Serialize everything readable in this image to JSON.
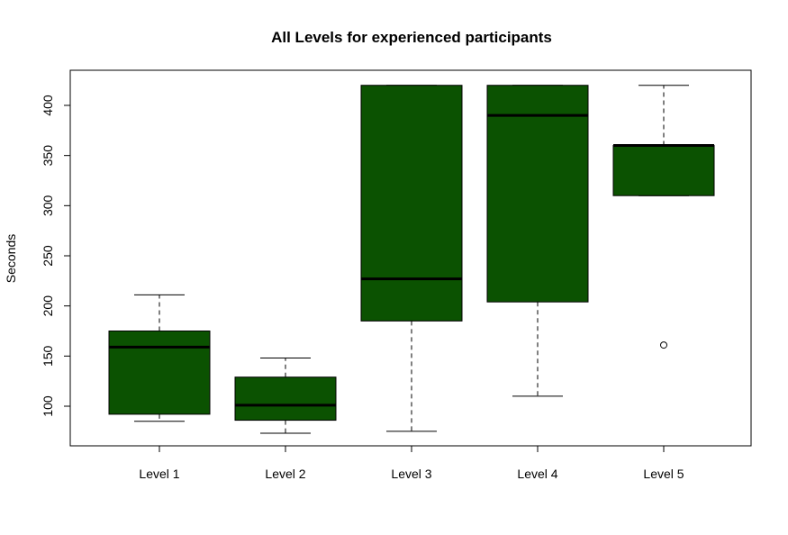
{
  "chart_data": {
    "type": "boxplot",
    "title": "All Levels for experienced participants",
    "xlabel": "",
    "ylabel": "Seconds",
    "categories": [
      "Level 1",
      "Level 2",
      "Level 3",
      "Level 4",
      "Level 5"
    ],
    "yticks": [
      100,
      150,
      200,
      250,
      300,
      350,
      400
    ],
    "ylim": [
      60,
      435
    ],
    "box_color": "#0b5201",
    "boxes": [
      {
        "category": "Level 1",
        "whisker_low": 85,
        "q1": 92,
        "median": 159,
        "q3": 175,
        "whisker_high": 211,
        "outliers": []
      },
      {
        "category": "Level 2",
        "whisker_low": 73,
        "q1": 86,
        "median": 101,
        "q3": 129,
        "whisker_high": 148,
        "outliers": []
      },
      {
        "category": "Level 3",
        "whisker_low": 75,
        "q1": 185,
        "median": 227,
        "q3": 420,
        "whisker_high": 420,
        "outliers": []
      },
      {
        "category": "Level 4",
        "whisker_low": 110,
        "q1": 204,
        "median": 390,
        "q3": 420,
        "whisker_high": 420,
        "outliers": []
      },
      {
        "category": "Level 5",
        "whisker_low": 310,
        "q1": 310,
        "median": 360,
        "q3": 360,
        "whisker_high": 420,
        "outliers": [
          161
        ]
      }
    ],
    "grid": false,
    "legend": "none"
  }
}
